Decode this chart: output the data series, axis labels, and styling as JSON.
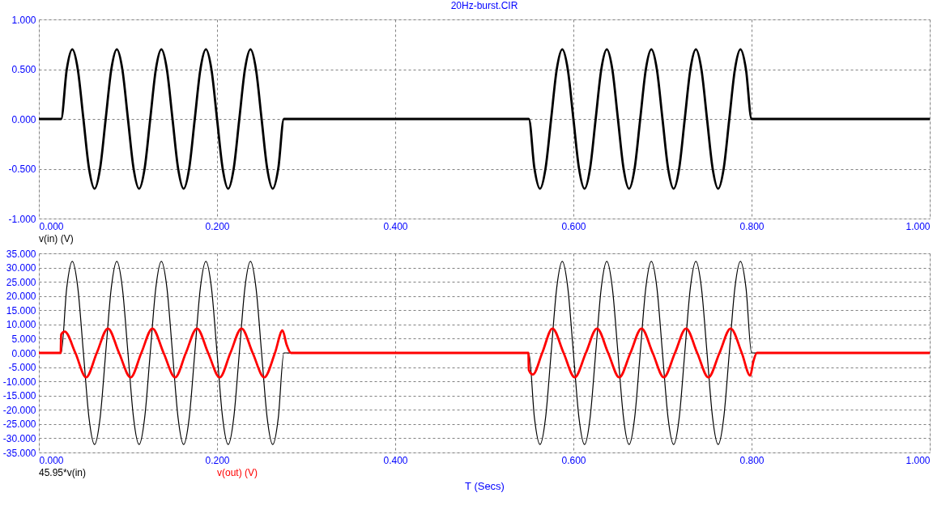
{
  "chart_data": [
    {
      "type": "line",
      "title": "20Hz-burst.CIR",
      "grid": true,
      "legend": "bottom left",
      "xlim": [
        0,
        1
      ],
      "xticks": [
        {
          "value": 0,
          "label": "0.000"
        },
        {
          "value": 0.2,
          "label": "0.200"
        },
        {
          "value": 0.4,
          "label": "0.400"
        },
        {
          "value": 0.6,
          "label": "0.600"
        },
        {
          "value": 0.8,
          "label": "0.800"
        },
        {
          "value": 1,
          "label": "1.000"
        }
      ],
      "ylim": [
        -1,
        1
      ],
      "yticks": [
        {
          "value": -1,
          "label": "-1.000"
        },
        {
          "value": -0.5,
          "label": "-0.500"
        },
        {
          "value": 0,
          "label": "0.000"
        },
        {
          "value": 0.5,
          "label": "0.500"
        },
        {
          "value": 1,
          "label": "1.000"
        }
      ],
      "x": [
        0,
        0.025,
        0.03125,
        0.0375,
        0.04375,
        0.05,
        0.05625,
        0.0625,
        0.06875,
        0.075,
        0.08125,
        0.0875,
        0.09375,
        0.1,
        0.10625,
        0.1125,
        0.11875,
        0.125,
        0.13125,
        0.1375,
        0.14375,
        0.15,
        0.15625,
        0.1625,
        0.16875,
        0.175,
        0.18125,
        0.1875,
        0.19375,
        0.2,
        0.20625,
        0.2125,
        0.21875,
        0.225,
        0.23125,
        0.2375,
        0.24375,
        0.25,
        0.25625,
        0.2625,
        0.26875,
        0.275,
        0.55,
        0.55625,
        0.5625,
        0.56875,
        0.575,
        0.58125,
        0.5875,
        0.59375,
        0.6,
        0.60625,
        0.6125,
        0.61875,
        0.625,
        0.63125,
        0.6375,
        0.64375,
        0.65,
        0.65625,
        0.6625,
        0.66875,
        0.675,
        0.68125,
        0.6875,
        0.69375,
        0.7,
        0.70625,
        0.7125,
        0.71875,
        0.725,
        0.73125,
        0.7375,
        0.74375,
        0.75,
        0.75625,
        0.7625,
        0.76875,
        0.775,
        0.78125,
        0.7875,
        0.79375,
        0.8,
        1
      ],
      "series": [
        {
          "name": "v(in) (V)",
          "color": "#000000",
          "values": [
            0,
            0,
            0.495,
            0.7,
            0.495,
            0,
            -0.495,
            -0.7,
            -0.495,
            0,
            0.495,
            0.7,
            0.495,
            0,
            -0.495,
            -0.7,
            -0.495,
            0,
            0.495,
            0.7,
            0.495,
            0,
            -0.495,
            -0.7,
            -0.495,
            0,
            0.495,
            0.7,
            0.495,
            0,
            -0.495,
            -0.7,
            -0.495,
            0,
            0.495,
            0.7,
            0.495,
            0,
            -0.495,
            -0.7,
            -0.495,
            0,
            0,
            -0.495,
            -0.7,
            -0.495,
            0,
            0.495,
            0.7,
            0.495,
            0,
            -0.495,
            -0.7,
            -0.495,
            0,
            0.495,
            0.7,
            0.495,
            0,
            -0.495,
            -0.7,
            -0.495,
            0,
            0.495,
            0.7,
            0.495,
            0,
            -0.495,
            -0.7,
            -0.495,
            0,
            0.495,
            0.7,
            0.495,
            0,
            -0.495,
            -0.7,
            -0.495,
            0,
            0.495,
            0.7,
            0.495,
            0,
            0
          ]
        }
      ]
    },
    {
      "type": "line",
      "xlabel": "T (Secs)",
      "grid": true,
      "legend": "bottom left",
      "xlim": [
        0,
        1
      ],
      "xticks": [
        {
          "value": 0,
          "label": "0.000"
        },
        {
          "value": 0.2,
          "label": "0.200"
        },
        {
          "value": 0.4,
          "label": "0.400"
        },
        {
          "value": 0.6,
          "label": "0.600"
        },
        {
          "value": 0.8,
          "label": "0.800"
        },
        {
          "value": 1,
          "label": "1.000"
        }
      ],
      "ylim": [
        -35,
        35
      ],
      "yticks": [
        {
          "value": -35,
          "label": "-35.000"
        },
        {
          "value": -30,
          "label": "-30.000"
        },
        {
          "value": -25,
          "label": "-25.000"
        },
        {
          "value": -20,
          "label": "-20.000"
        },
        {
          "value": -15,
          "label": "-15.000"
        },
        {
          "value": -10,
          "label": "-10.000"
        },
        {
          "value": -5,
          "label": "-5.000"
        },
        {
          "value": 0,
          "label": "0.000"
        },
        {
          "value": 5,
          "label": "5.000"
        },
        {
          "value": 10,
          "label": "10.000"
        },
        {
          "value": 15,
          "label": "15.000"
        },
        {
          "value": 20,
          "label": "20.000"
        },
        {
          "value": 25,
          "label": "25.000"
        },
        {
          "value": 30,
          "label": "30.000"
        },
        {
          "value": 35,
          "label": "35.000"
        }
      ],
      "x": [
        0,
        0.025,
        0.03125,
        0.0375,
        0.04375,
        0.05,
        0.05625,
        0.0625,
        0.06875,
        0.075,
        0.08125,
        0.0875,
        0.09375,
        0.1,
        0.10625,
        0.1125,
        0.11875,
        0.125,
        0.13125,
        0.1375,
        0.14375,
        0.15,
        0.15625,
        0.1625,
        0.16875,
        0.175,
        0.18125,
        0.1875,
        0.19375,
        0.2,
        0.20625,
        0.2125,
        0.21875,
        0.225,
        0.23125,
        0.2375,
        0.24375,
        0.25,
        0.25625,
        0.2625,
        0.26875,
        0.275,
        0.55,
        0.55625,
        0.5625,
        0.56875,
        0.575,
        0.58125,
        0.5875,
        0.59375,
        0.6,
        0.60625,
        0.6125,
        0.61875,
        0.625,
        0.63125,
        0.6375,
        0.64375,
        0.65,
        0.65625,
        0.6625,
        0.66875,
        0.675,
        0.68125,
        0.6875,
        0.69375,
        0.7,
        0.70625,
        0.7125,
        0.71875,
        0.725,
        0.73125,
        0.7375,
        0.74375,
        0.75,
        0.75625,
        0.7625,
        0.76875,
        0.775,
        0.78125,
        0.7875,
        0.79375,
        0.8,
        1
      ],
      "series": [
        {
          "name": "45.95*v(in)",
          "color": "#000000",
          "values": [
            0,
            0,
            22.8,
            32.2,
            22.8,
            0,
            -22.8,
            -32.2,
            -22.8,
            0,
            22.8,
            32.2,
            22.8,
            0,
            -22.8,
            -32.2,
            -22.8,
            0,
            22.8,
            32.2,
            22.8,
            0,
            -22.8,
            -32.2,
            -22.8,
            0,
            22.8,
            32.2,
            22.8,
            0,
            -22.8,
            -32.2,
            -22.8,
            0,
            22.8,
            32.2,
            22.8,
            0,
            -22.8,
            -32.2,
            -22.8,
            0,
            0,
            -22.8,
            -32.2,
            -22.8,
            0,
            22.8,
            32.2,
            22.8,
            0,
            -22.8,
            -32.2,
            -22.8,
            0,
            22.8,
            32.2,
            22.8,
            0,
            -22.8,
            -32.2,
            -22.8,
            0,
            22.8,
            32.2,
            22.8,
            0,
            -22.8,
            -32.2,
            -22.8,
            0,
            22.8,
            32.2,
            22.8,
            0,
            -22.8,
            -32.2,
            -22.8,
            0,
            22.8,
            32.2,
            22.8,
            0,
            0
          ]
        },
        {
          "name": "v(out) (V)",
          "color": "#ff0000",
          "x": [
            0,
            0.0245,
            0.025,
            0.029,
            0.041,
            0.053,
            0.065,
            0.0775,
            0.09,
            0.103,
            0.115,
            0.1275,
            0.14,
            0.153,
            0.165,
            0.1775,
            0.19,
            0.203,
            0.215,
            0.2275,
            0.24,
            0.253,
            0.265,
            0.2735,
            0.278,
            0.283,
            0.5495,
            0.55,
            0.5545,
            0.565,
            0.5765,
            0.589,
            0.6015,
            0.614,
            0.6265,
            0.639,
            0.6515,
            0.664,
            0.6765,
            0.689,
            0.7015,
            0.714,
            0.7265,
            0.739,
            0.7515,
            0.764,
            0.7765,
            0.789,
            0.7985,
            0.802,
            0.806,
            1
          ],
          "values": [
            0,
            0,
            6.5,
            7.5,
            0,
            -8.6,
            0,
            8.6,
            0,
            -8.6,
            0,
            8.6,
            0,
            -8.6,
            0,
            8.6,
            0,
            -8.6,
            0,
            8.6,
            0,
            -8.6,
            0,
            7.9,
            3,
            0,
            0,
            -6,
            -7.6,
            0,
            8.6,
            0,
            -8.6,
            0,
            8.6,
            0,
            -8.6,
            0,
            8.6,
            0,
            -8.6,
            0,
            8.6,
            0,
            -8.6,
            0,
            8.6,
            0,
            -8,
            -3,
            0,
            0
          ]
        }
      ]
    }
  ]
}
